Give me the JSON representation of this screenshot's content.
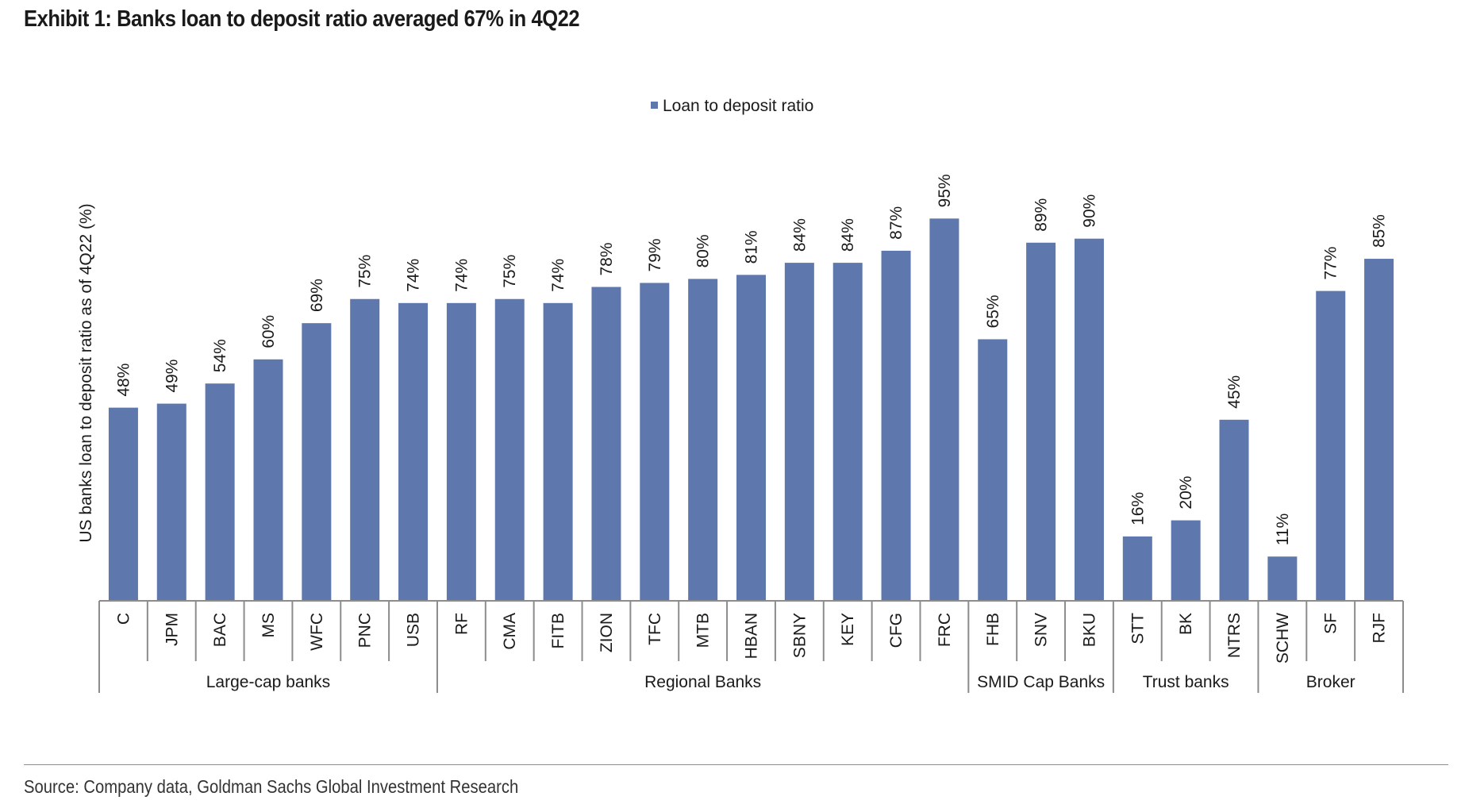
{
  "title": "Exhibit 1: Banks loan to deposit ratio averaged 67% in 4Q22",
  "source": "Source: Company data, Goldman Sachs Global Investment Research",
  "colors": {
    "bar": "#5e77ad",
    "axis": "#8c8c8c",
    "text": "#1a1a1a"
  },
  "chart_data": {
    "type": "bar",
    "ylabel": "US banks loan to deposit ratio as of 4Q22 (%)",
    "ylim": [
      0,
      100
    ],
    "grid": false,
    "legend_position": "top-center",
    "value_suffix": "%",
    "categories": [
      "C",
      "JPM",
      "BAC",
      "MS",
      "WFC",
      "PNC",
      "USB",
      "RF",
      "CMA",
      "FITB",
      "ZION",
      "TFC",
      "MTB",
      "HBAN",
      "SBNY",
      "KEY",
      "CFG",
      "FRC",
      "FHB",
      "SNV",
      "BKU",
      "STT",
      "BK",
      "NTRS",
      "SCHW",
      "SF",
      "RJF"
    ],
    "series": [
      {
        "name": "Loan to deposit ratio",
        "values": [
          48,
          49,
          54,
          60,
          69,
          75,
          74,
          74,
          75,
          74,
          78,
          79,
          80,
          81,
          84,
          84,
          87,
          95,
          65,
          89,
          90,
          16,
          20,
          45,
          11,
          77,
          85
        ]
      }
    ],
    "groups": [
      {
        "label": "Large-cap banks",
        "start": 0,
        "end": 6
      },
      {
        "label": "Regional Banks",
        "start": 7,
        "end": 17
      },
      {
        "label": "SMID Cap Banks",
        "start": 18,
        "end": 20
      },
      {
        "label": "Trust banks",
        "start": 21,
        "end": 23
      },
      {
        "label": "Broker",
        "start": 24,
        "end": 26
      }
    ]
  }
}
